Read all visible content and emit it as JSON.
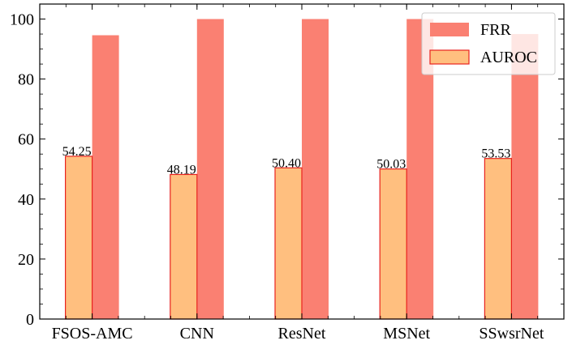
{
  "chart_data": {
    "type": "bar",
    "categories": [
      "FSOS-AMC",
      "CNN",
      "ResNet",
      "MSNet",
      "SSwsrNet"
    ],
    "series": [
      {
        "name": "AUROC",
        "values": [
          54.25,
          48.19,
          50.4,
          50.03,
          53.53
        ],
        "color": "#FFBF7F",
        "edge": "#E8231F",
        "labels": [
          "54.25",
          "48.19",
          "50.40",
          "50.03",
          "53.53"
        ]
      },
      {
        "name": "FRR",
        "values": [
          94.6,
          100.0,
          100.0,
          100.0,
          95.0
        ],
        "color": "#FA8072"
      }
    ],
    "title": "",
    "xlabel": "",
    "ylabel": "",
    "ylim": [
      0,
      105
    ],
    "yticks": [
      "0",
      "20",
      "40",
      "60",
      "80",
      "100"
    ],
    "grid": false,
    "legend_position": "top-right",
    "legend_order": [
      "FRR",
      "AUROC"
    ]
  }
}
